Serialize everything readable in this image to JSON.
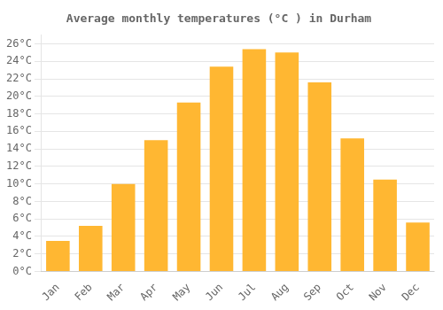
{
  "chart_data": {
    "type": "bar",
    "title": "Average monthly temperatures (°C ) in Durham",
    "categories": [
      "Jan",
      "Feb",
      "Mar",
      "Apr",
      "May",
      "Jun",
      "Jul",
      "Aug",
      "Sep",
      "Oct",
      "Nov",
      "Dec"
    ],
    "values": [
      3.5,
      5.2,
      10.0,
      15.0,
      19.3,
      23.4,
      25.4,
      25.0,
      21.6,
      15.2,
      10.5,
      5.6
    ],
    "color": "#FFB732",
    "ylim": [
      0,
      27
    ],
    "yticks": [
      {
        "value": 0,
        "label": "0°C"
      },
      {
        "value": 2,
        "label": "2°C"
      },
      {
        "value": 4,
        "label": "4°C"
      },
      {
        "value": 6,
        "label": "6°C"
      },
      {
        "value": 8,
        "label": "8°C"
      },
      {
        "value": 10,
        "label": "10°C"
      },
      {
        "value": 12,
        "label": "12°C"
      },
      {
        "value": 14,
        "label": "14°C"
      },
      {
        "value": 16,
        "label": "16°C"
      },
      {
        "value": 18,
        "label": "18°C"
      },
      {
        "value": 20,
        "label": "20°C"
      },
      {
        "value": 22,
        "label": "22°C"
      },
      {
        "value": 24,
        "label": "24°C"
      },
      {
        "value": 26,
        "label": "26°C"
      }
    ],
    "grid": true
  }
}
